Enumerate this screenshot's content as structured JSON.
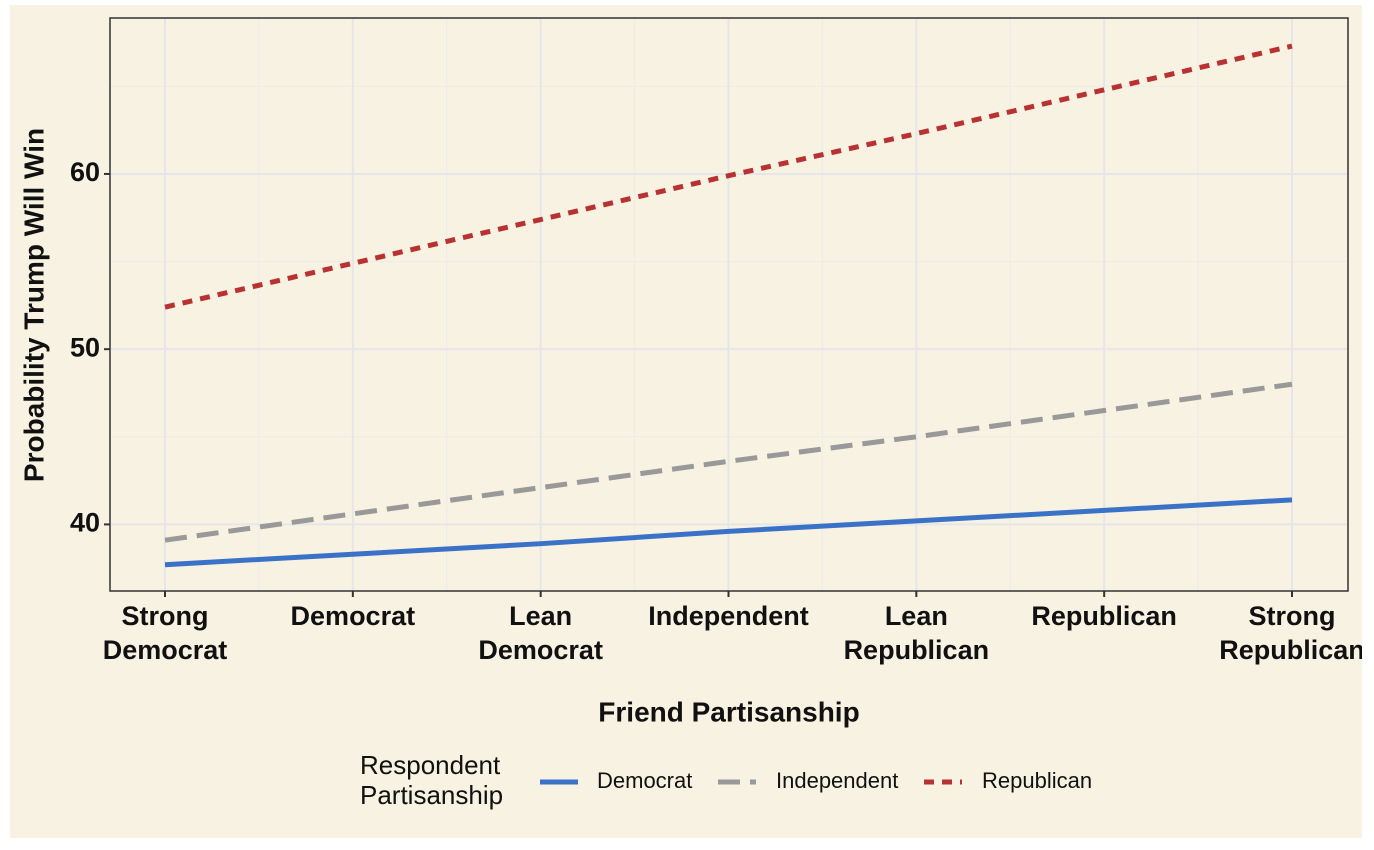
{
  "chart_data": {
    "type": "line",
    "x_label": "Friend Partisanship",
    "y_label": "Probability Trump Will Win",
    "categories": [
      "Strong\nDemocrat",
      "Democrat",
      "Lean\nDemocrat",
      "Independent",
      "Lean\nRepublican",
      "Republican",
      "Strong\nRepublican"
    ],
    "series": [
      {
        "name": "Democrat",
        "color": "#3a72c8",
        "dash": "solid",
        "values": [
          37.7,
          38.3,
          38.9,
          39.6,
          40.2,
          40.8,
          41.4
        ]
      },
      {
        "name": "Independent",
        "color": "#999999",
        "dash": "dashed",
        "values": [
          39.1,
          40.6,
          42.1,
          43.6,
          45.0,
          46.5,
          48.0
        ]
      },
      {
        "name": "Republican",
        "color": "#b83232",
        "dash": "dotted",
        "values": [
          52.4,
          54.9,
          57.4,
          59.9,
          62.3,
          64.8,
          67.3
        ]
      }
    ],
    "legend_title": "Respondent\nPartisanship",
    "legend_position": "bottom",
    "ylim": [
      36.2,
      68.9
    ],
    "yticks": [
      40,
      50,
      60
    ],
    "minor_yticks": [
      45,
      55,
      65
    ],
    "grid": true
  }
}
